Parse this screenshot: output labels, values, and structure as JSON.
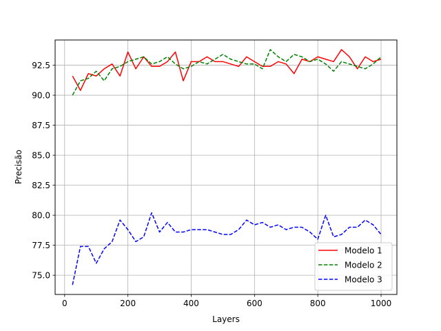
{
  "chart_data": {
    "type": "line",
    "title": "",
    "xlabel": "Layers",
    "ylabel": "Precisão",
    "xlim": [
      -30,
      1050
    ],
    "ylim": [
      73.4,
      94.6
    ],
    "xticks": [
      0,
      200,
      400,
      600,
      800,
      1000
    ],
    "yticks": [
      75.0,
      77.5,
      80.0,
      82.5,
      85.0,
      87.5,
      90.0,
      92.5
    ],
    "xtick_labels": [
      "0",
      "200",
      "400",
      "600",
      "800",
      "1000"
    ],
    "ytick_labels": [
      "75.0",
      "77.5",
      "80.0",
      "82.5",
      "85.0",
      "87.5",
      "90.0",
      "92.5"
    ],
    "grid": true,
    "legend_position": "lower-right",
    "x": [
      25,
      50,
      75,
      100,
      125,
      150,
      175,
      200,
      225,
      250,
      275,
      300,
      325,
      350,
      375,
      400,
      425,
      450,
      475,
      500,
      525,
      550,
      575,
      600,
      625,
      650,
      675,
      700,
      725,
      750,
      775,
      800,
      825,
      850,
      875,
      900,
      925,
      950,
      975,
      1000
    ],
    "series": [
      {
        "name": "Modelo 1",
        "color": "#ff0000",
        "style": "solid",
        "values": [
          91.6,
          90.4,
          91.8,
          91.6,
          92.2,
          92.6,
          91.6,
          93.6,
          92.2,
          93.2,
          92.4,
          92.4,
          92.8,
          93.6,
          91.2,
          92.8,
          92.8,
          93.2,
          92.8,
          92.8,
          92.6,
          92.4,
          93.2,
          92.8,
          92.4,
          92.4,
          92.8,
          92.6,
          91.8,
          93.0,
          92.8,
          93.2,
          93.0,
          92.8,
          93.8,
          93.2,
          92.2,
          93.2,
          92.8,
          93.0
        ]
      },
      {
        "name": "Modelo 2",
        "color": "#008000",
        "style": "dashed",
        "values": [
          90.0,
          91.2,
          91.4,
          92.0,
          91.2,
          92.2,
          92.4,
          92.8,
          93.0,
          93.2,
          92.6,
          92.8,
          93.2,
          92.6,
          92.2,
          92.4,
          92.8,
          92.6,
          93.0,
          93.4,
          93.0,
          92.8,
          92.6,
          92.6,
          92.2,
          93.8,
          93.2,
          92.8,
          93.4,
          93.2,
          92.8,
          93.0,
          92.6,
          92.0,
          92.8,
          92.6,
          92.4,
          92.2,
          92.6,
          93.2
        ]
      },
      {
        "name": "Modelo 3",
        "color": "#0000ff",
        "style": "dashed",
        "values": [
          74.2,
          77.4,
          77.4,
          76.0,
          77.2,
          77.8,
          79.6,
          78.8,
          77.8,
          78.2,
          80.2,
          78.6,
          79.4,
          78.6,
          78.6,
          78.8,
          78.8,
          78.8,
          78.6,
          78.4,
          78.4,
          78.8,
          79.6,
          79.2,
          79.4,
          79.0,
          79.2,
          78.8,
          79.0,
          79.0,
          78.6,
          78.0,
          80.0,
          78.2,
          78.4,
          79.0,
          79.0,
          79.6,
          79.2,
          78.4
        ]
      }
    ]
  }
}
